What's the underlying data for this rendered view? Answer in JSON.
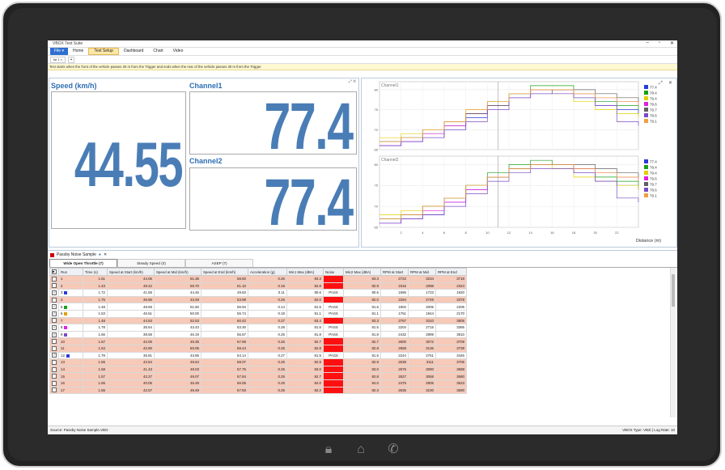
{
  "app": {
    "title": "VBOX Test Suite"
  },
  "menu": {
    "file": "File ▾",
    "items": [
      "Home",
      "Test Setup",
      "Dashboard",
      "Chart",
      "Video"
    ]
  },
  "doc_tab": {
    "label": "tst 1",
    "close": "×",
    "add": "+"
  },
  "info": "Test starts when the front of the vehicle passes 30 m from the Trigger and ends when the rear of the vehicle passes 30 m from the Trigger.",
  "tiles": {
    "speed": {
      "title": "Speed (km/h)",
      "value": "44.55"
    },
    "channel1": {
      "title": "Channel1",
      "value": "77.4"
    },
    "channel2": {
      "title": "Channel2",
      "value": "77.4"
    }
  },
  "chart_data": [
    {
      "type": "line",
      "title": "Channel1",
      "xlabel": "Distance (m)",
      "ylabel": "",
      "xlim": [
        0,
        24
      ],
      "ylim": [
        65,
        82
      ],
      "x_ticks": [
        2,
        4,
        6,
        8,
        10,
        12,
        14,
        16,
        18,
        20,
        22
      ],
      "y_ticks": [
        65,
        70,
        75,
        80
      ],
      "x": [
        0,
        2,
        4,
        6,
        8,
        10,
        12,
        14,
        16,
        18,
        20,
        22,
        24
      ],
      "series": [
        {
          "name": "77.4",
          "color": "#2a3bd6",
          "values": [
            66,
            67,
            68,
            70,
            73,
            76,
            79,
            80,
            80,
            78,
            76,
            75,
            74
          ]
        },
        {
          "name": "78.4",
          "color": "#18a018",
          "values": [
            67,
            68,
            69,
            71,
            74,
            77,
            79,
            81,
            81,
            79,
            77,
            76,
            75
          ]
        },
        {
          "name": "79.4",
          "color": "#e0d000",
          "values": [
            68,
            69,
            70,
            72,
            75,
            77,
            79,
            80,
            79,
            77,
            75,
            74,
            73
          ]
        },
        {
          "name": "79.6",
          "color": "#e020e0",
          "values": [
            66,
            67,
            69,
            71,
            74,
            76,
            78,
            80,
            80,
            79,
            78,
            77,
            76
          ]
        },
        {
          "name": "79.7",
          "color": "#606060",
          "values": [
            67,
            68,
            70,
            72,
            74,
            76,
            78,
            79,
            80,
            80,
            79,
            78,
            77
          ]
        },
        {
          "name": "78.6",
          "color": "#7a4ac8",
          "values": [
            66,
            67,
            68,
            70,
            72,
            75,
            78,
            79,
            79,
            78,
            76,
            72,
            71
          ]
        },
        {
          "name": "79.1",
          "color": "#f0a040",
          "values": [
            67,
            68,
            70,
            72,
            75,
            77,
            79,
            80,
            80,
            79,
            78,
            77,
            76
          ]
        }
      ]
    },
    {
      "type": "line",
      "title": "Channel2",
      "xlabel": "Distance (m)",
      "ylabel": "",
      "xlim": [
        0,
        24
      ],
      "ylim": [
        65,
        82
      ],
      "x_ticks": [
        2,
        4,
        6,
        8,
        10,
        12,
        14,
        16,
        18,
        20,
        22
      ],
      "y_ticks": [
        65,
        70,
        75,
        80
      ],
      "x": [
        0,
        2,
        4,
        6,
        8,
        10,
        12,
        14,
        16,
        18,
        20,
        22,
        24
      ],
      "series": [
        {
          "name": "77.4",
          "color": "#2a3bd6",
          "values": [
            66,
            67,
            68,
            71,
            74,
            77,
            79,
            80,
            80,
            78,
            76,
            75,
            74
          ]
        },
        {
          "name": "78.4",
          "color": "#18a018",
          "values": [
            67,
            68,
            70,
            72,
            75,
            78,
            80,
            81,
            80,
            79,
            77,
            76,
            75
          ]
        },
        {
          "name": "79.4",
          "color": "#e0d000",
          "values": [
            68,
            69,
            70,
            72,
            75,
            77,
            79,
            80,
            79,
            77,
            76,
            75,
            74
          ]
        },
        {
          "name": "79.6",
          "color": "#e020e0",
          "values": [
            66,
            67,
            69,
            71,
            74,
            77,
            79,
            80,
            80,
            79,
            78,
            77,
            76
          ]
        },
        {
          "name": "79.7",
          "color": "#606060",
          "values": [
            67,
            68,
            70,
            72,
            75,
            77,
            79,
            80,
            80,
            80,
            79,
            78,
            77
          ]
        },
        {
          "name": "78.6",
          "color": "#7a4ac8",
          "values": [
            66,
            67,
            68,
            70,
            73,
            76,
            78,
            79,
            79,
            78,
            76,
            72,
            71
          ]
        },
        {
          "name": "79.1",
          "color": "#f0a040",
          "values": [
            67,
            68,
            70,
            72,
            75,
            77,
            79,
            80,
            80,
            79,
            78,
            77,
            76
          ]
        }
      ]
    }
  ],
  "table": {
    "panel_title": "Passby Noise Sample",
    "tabs": [
      "Wide Open Throttle (7)",
      "Steady Speed (0)",
      "ASEP (7)"
    ],
    "columns": [
      "",
      "Run",
      "Time (s)",
      "Speed at Start (km/h)",
      "Speed at Mid (km/h)",
      "Speed at End (km/h)",
      "Acceleration (g)",
      "Mic1 Max (dBA)",
      "Noise",
      "Mic2 Max (dBA)",
      "RPM at Start",
      "RPM at Mid",
      "RPM at End"
    ],
    "rows": [
      {
        "checked": false,
        "swatch": "",
        "hl": true,
        "run": "1",
        "time": "1.51",
        "s_start": "44.06",
        "s_mid": "51.36",
        "s_end": "58.50",
        "acc": "0.26",
        "mic1": "83.3",
        "noise": "FAIL",
        "mic2": "83.3",
        "r_start": "2722",
        "r_mid": "3234",
        "r_end": "3718"
      },
      {
        "checked": false,
        "swatch": "",
        "hl": true,
        "run": "2",
        "time": "1.43",
        "s_start": "49.42",
        "s_mid": "59.70",
        "s_end": "61.10",
        "acc": "0.18",
        "mic1": "82.8",
        "noise": "FAIL",
        "mic2": "82.9",
        "r_start": "1916",
        "r_mid": "2098",
        "r_end": "2324"
      },
      {
        "checked": true,
        "swatch": "#2a3bd6",
        "hl": false,
        "run": "3",
        "time": "1.72",
        "s_start": "41.58",
        "s_mid": "44.46",
        "s_end": "49.83",
        "acc": "0.11",
        "mic1": "80.6",
        "noise": "PASS",
        "mic2": "80.6",
        "r_start": "1596",
        "r_mid": "1723",
        "r_end": "1920"
      },
      {
        "checked": false,
        "swatch": "",
        "hl": true,
        "run": "4",
        "time": "1.75",
        "s_start": "36.86",
        "s_mid": "43.49",
        "s_end": "53.98",
        "acc": "0.25",
        "mic1": "82.0",
        "noise": "FAIL",
        "mic2": "82.0",
        "r_start": "2294",
        "r_mid": "2749",
        "r_end": "3378"
      },
      {
        "checked": true,
        "swatch": "#18a018",
        "hl": false,
        "run": "5",
        "time": "1.48",
        "s_start": "48.69",
        "s_mid": "51.60",
        "s_end": "56.94",
        "acc": "0.14",
        "mic1": "81.5",
        "noise": "PASS",
        "mic2": "81.6",
        "r_start": "1902",
        "r_mid": "2005",
        "r_end": "2205"
      },
      {
        "checked": true,
        "swatch": "#e0a000",
        "hl": false,
        "run": "6",
        "time": "1.53",
        "s_start": "46.51",
        "s_mid": "50.00",
        "s_end": "55.74",
        "acc": "0.19",
        "mic1": "81.1",
        "noise": "PASS",
        "mic2": "81.1",
        "r_start": "1751",
        "r_mid": "1944",
        "r_end": "2170"
      },
      {
        "checked": false,
        "swatch": "",
        "hl": true,
        "run": "7",
        "time": "1.48",
        "s_start": "44.53",
        "s_mid": "52.53",
        "s_end": "60.42",
        "acc": "0.27",
        "mic1": "83.4",
        "noise": "FAIL",
        "mic2": "83.3",
        "r_start": "2767",
        "r_mid": "3310",
        "r_end": "3805"
      },
      {
        "checked": true,
        "swatch": "#e020e0",
        "hl": false,
        "run": "8",
        "time": "1.78",
        "s_start": "35.54",
        "s_mid": "43.43",
        "s_end": "53.30",
        "acc": "0.28",
        "mic1": "81.5",
        "noise": "PASS",
        "mic2": "81.5",
        "r_start": "2204",
        "r_mid": "2715",
        "r_end": "3385"
      },
      {
        "checked": true,
        "swatch": "#7a4ac8",
        "hl": false,
        "run": "9",
        "time": "1.66",
        "s_start": "38.58",
        "s_mid": "46.19",
        "s_end": "55.57",
        "acc": "0.25",
        "mic1": "81.8",
        "noise": "PASS",
        "mic2": "81.8",
        "r_start": "2432",
        "r_mid": "2899",
        "r_end": "3510"
      },
      {
        "checked": false,
        "swatch": "",
        "hl": true,
        "run": "10",
        "time": "1.57",
        "s_start": "42.05",
        "s_mid": "49.35",
        "s_end": "57.98",
        "acc": "0.26",
        "mic1": "82.7",
        "noise": "FAIL",
        "mic2": "82.7",
        "r_start": "2600",
        "r_mid": "3072",
        "r_end": "3709"
      },
      {
        "checked": false,
        "swatch": "",
        "hl": true,
        "run": "11",
        "time": "1.54",
        "s_start": "42.90",
        "s_mid": "50.05",
        "s_end": "58.44",
        "acc": "0.25",
        "mic1": "82.8",
        "noise": "FAIL",
        "mic2": "82.8",
        "r_start": "2658",
        "r_mid": "3136",
        "r_end": "3739"
      },
      {
        "checked": true,
        "swatch": "#2a3bd6",
        "hl": false,
        "run": "12",
        "time": "1.79",
        "s_start": "35.81",
        "s_mid": "43.85",
        "s_end": "54.14",
        "acc": "0.27",
        "mic1": "81.5",
        "noise": "PASS",
        "mic2": "81.5",
        "r_start": "2244",
        "r_mid": "2761",
        "r_end": "3446"
      },
      {
        "checked": false,
        "swatch": "",
        "hl": true,
        "run": "13",
        "time": "1.55",
        "s_start": "42.54",
        "s_mid": "49.64",
        "s_end": "58.07",
        "acc": "0.25",
        "mic1": "82.9",
        "noise": "FAIL",
        "mic2": "82.9",
        "r_start": "2638",
        "r_mid": "3111",
        "r_end": "3705"
      },
      {
        "checked": false,
        "swatch": "",
        "hl": true,
        "run": "14",
        "time": "1.58",
        "s_start": "41.43",
        "s_mid": "49.03",
        "s_end": "57.75",
        "acc": "0.26",
        "mic1": "83.0",
        "noise": "FAIL",
        "mic2": "83.0",
        "r_start": "2576",
        "r_mid": "3090",
        "r_end": "3688"
      },
      {
        "checked": false,
        "swatch": "",
        "hl": true,
        "run": "15",
        "time": "1.57",
        "s_start": "42.27",
        "s_mid": "49.07",
        "s_end": "57.84",
        "acc": "0.25",
        "mic1": "82.7",
        "noise": "FAIL",
        "mic2": "82.8",
        "r_start": "2627",
        "r_mid": "3068",
        "r_end": "3680"
      },
      {
        "checked": false,
        "swatch": "",
        "hl": true,
        "run": "16",
        "time": "1.65",
        "s_start": "40.05",
        "s_mid": "46.49",
        "s_end": "56.05",
        "acc": "0.25",
        "mic1": "84.0",
        "noise": "FAIL",
        "mic2": "84.0",
        "r_start": "2475",
        "r_mid": "2905",
        "r_end": "3523"
      },
      {
        "checked": false,
        "swatch": "",
        "hl": true,
        "run": "17",
        "time": "1.56",
        "s_start": "42.57",
        "s_mid": "49.49",
        "s_end": "57.93",
        "acc": "0.25",
        "mic1": "82.2",
        "noise": "FAIL",
        "mic2": "82.3",
        "r_start": "2635",
        "r_mid": "3100",
        "r_end": "3690"
      }
    ]
  },
  "status": {
    "left": "Source: Passby Noise Sample.VBO",
    "right": "VBOX Type: VB3i | Log Rate: 10"
  },
  "icons": {
    "lock": "lock-icon",
    "home": "home-icon",
    "phone": "phone-icon"
  }
}
